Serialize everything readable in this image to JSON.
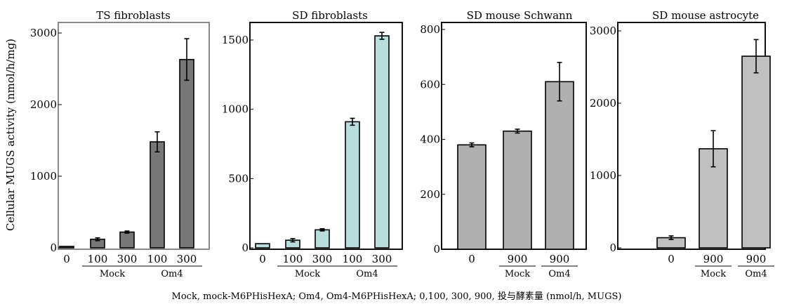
{
  "y_axis_title": "Cellular MUGS activity (nmol/h/mg)",
  "footnote": "Mock, mock-M6PHisHexA; Om4, Om4-M6PHisHexA; 0,100, 300, 900, 投与酵素量 (nmol/h, MUGS)",
  "chart_data": [
    {
      "type": "bar",
      "title": "TS fibroblasts",
      "categories": [
        "0",
        "100",
        "300",
        "100",
        "300"
      ],
      "groups": [
        {
          "label": "Mock",
          "categories": [
            1,
            2
          ]
        },
        {
          "label": "Om4",
          "categories": [
            3,
            4
          ]
        }
      ],
      "series": [
        {
          "values": [
            20,
            120,
            220,
            1480,
            2630
          ],
          "errors": [
            0,
            20,
            15,
            140,
            290
          ]
        }
      ],
      "yticks": [
        "0",
        "1000",
        "2000",
        "3000"
      ],
      "ylim": [
        0,
        3000
      ],
      "bar_color": "#777777",
      "frame_color": "#888888"
    },
    {
      "type": "bar",
      "title": "SD fibroblasts",
      "categories": [
        "0",
        "100",
        "300",
        "100",
        "300"
      ],
      "groups": [
        {
          "label": "Mock",
          "categories": [
            1,
            2
          ]
        },
        {
          "label": "Om4",
          "categories": [
            3,
            4
          ]
        }
      ],
      "series": [
        {
          "values": [
            30,
            55,
            130,
            910,
            1530
          ],
          "errors": [
            0,
            12,
            8,
            25,
            25
          ]
        }
      ],
      "yticks": [
        "0",
        "500",
        "1000",
        "1500"
      ],
      "ylim": [
        0,
        1500
      ],
      "bar_color": "#b7dedd",
      "frame_color": "#111111"
    },
    {
      "type": "bar",
      "title": "SD mouse Schwann",
      "categories": [
        "0",
        "900",
        "900"
      ],
      "groups": [
        {
          "label": "Mock",
          "categories": [
            1
          ]
        },
        {
          "label": "Om4",
          "categories": [
            2
          ]
        }
      ],
      "series": [
        {
          "values": [
            380,
            430,
            610
          ],
          "errors": [
            7,
            7,
            70
          ]
        }
      ],
      "yticks": [
        "0",
        "200",
        "400",
        "600",
        "800"
      ],
      "ylim": [
        0,
        800
      ],
      "bar_color": "#b0b0b0",
      "frame_color": "#111111"
    },
    {
      "type": "bar",
      "title": "SD mouse astrocyte",
      "categories": [
        "0",
        "900",
        "900"
      ],
      "groups": [
        {
          "label": "Mock",
          "categories": [
            1
          ]
        },
        {
          "label": "Om4",
          "categories": [
            2
          ]
        }
      ],
      "series": [
        {
          "values": [
            140,
            1370,
            2650
          ],
          "errors": [
            25,
            250,
            230
          ]
        }
      ],
      "yticks": [
        "0",
        "1000",
        "2000",
        "3000"
      ],
      "ylim": [
        0,
        3000
      ],
      "bar_color": "#c0c0c0",
      "frame_color": "#111111"
    }
  ]
}
